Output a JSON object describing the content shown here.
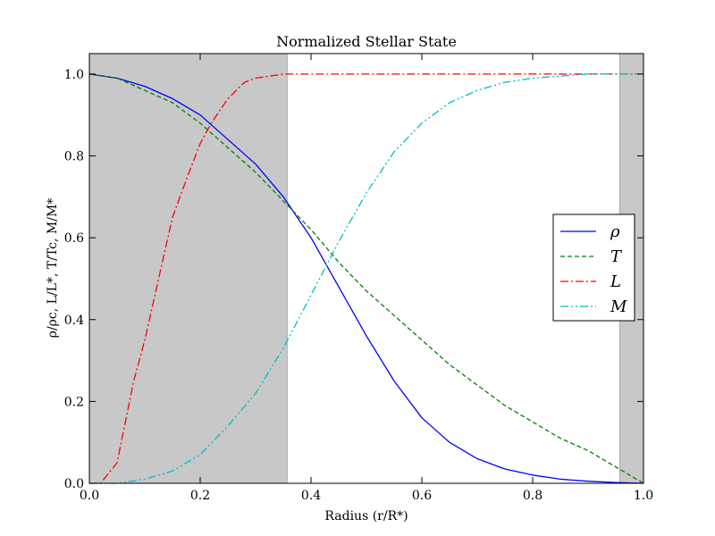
{
  "chart_data": {
    "type": "line",
    "title": "Normalized Stellar State",
    "xlabel": "Radius (r/R*)",
    "ylabel": "ρ/ρc, L/L*, T/Tc, M/M*",
    "xlim": [
      0.0,
      1.0
    ],
    "ylim": [
      0.0,
      1.05
    ],
    "xticks": [
      "0.0",
      "0.2",
      "0.4",
      "0.6",
      "0.8",
      "1.0"
    ],
    "yticks": [
      "0.0",
      "0.2",
      "0.4",
      "0.6",
      "0.8",
      "1.0"
    ],
    "grid": false,
    "legend_position": "center-right",
    "shaded_regions": [
      {
        "x_start": 0.0,
        "x_end": 0.357,
        "color": "#c8c8c8"
      },
      {
        "x_start": 0.957,
        "x_end": 1.0,
        "color": "#c8c8c8"
      }
    ],
    "series": [
      {
        "name": "ρ",
        "color": "#0000ff",
        "style": "solid",
        "x": [
          0.0,
          0.05,
          0.1,
          0.15,
          0.2,
          0.25,
          0.3,
          0.35,
          0.4,
          0.45,
          0.5,
          0.55,
          0.6,
          0.65,
          0.7,
          0.75,
          0.8,
          0.85,
          0.9,
          0.95,
          1.0
        ],
        "y": [
          1.0,
          0.99,
          0.97,
          0.94,
          0.9,
          0.84,
          0.78,
          0.7,
          0.6,
          0.48,
          0.36,
          0.25,
          0.16,
          0.1,
          0.06,
          0.035,
          0.02,
          0.01,
          0.005,
          0.002,
          0.0
        ]
      },
      {
        "name": "T",
        "color": "#008000",
        "style": "dashed",
        "x": [
          0.0,
          0.05,
          0.1,
          0.15,
          0.2,
          0.25,
          0.3,
          0.35,
          0.4,
          0.45,
          0.5,
          0.55,
          0.6,
          0.65,
          0.7,
          0.75,
          0.8,
          0.85,
          0.9,
          0.95,
          1.0
        ],
        "y": [
          1.0,
          0.99,
          0.96,
          0.93,
          0.88,
          0.82,
          0.76,
          0.69,
          0.62,
          0.54,
          0.47,
          0.41,
          0.35,
          0.29,
          0.24,
          0.19,
          0.15,
          0.11,
          0.08,
          0.04,
          0.0
        ]
      },
      {
        "name": "L",
        "color": "#ff0000",
        "style": "dashdot",
        "x": [
          0.0,
          0.02,
          0.05,
          0.08,
          0.1,
          0.12,
          0.15,
          0.18,
          0.2,
          0.22,
          0.25,
          0.28,
          0.3,
          0.35,
          0.4,
          0.5,
          0.6,
          0.7,
          0.8,
          0.9,
          1.0
        ],
        "y": [
          0.0,
          0.0,
          0.05,
          0.25,
          0.35,
          0.47,
          0.65,
          0.76,
          0.83,
          0.88,
          0.94,
          0.98,
          0.99,
          1.0,
          1.0,
          1.0,
          1.0,
          1.0,
          1.0,
          1.0,
          1.0
        ]
      },
      {
        "name": "M",
        "color": "#00bfbf",
        "style": "dashdotdot",
        "x": [
          0.0,
          0.05,
          0.1,
          0.15,
          0.2,
          0.25,
          0.3,
          0.35,
          0.4,
          0.45,
          0.5,
          0.55,
          0.6,
          0.65,
          0.7,
          0.75,
          0.8,
          0.85,
          0.9,
          0.95,
          1.0
        ],
        "y": [
          0.0,
          0.0,
          0.01,
          0.03,
          0.07,
          0.14,
          0.22,
          0.33,
          0.46,
          0.59,
          0.71,
          0.81,
          0.88,
          0.93,
          0.96,
          0.98,
          0.99,
          0.995,
          1.0,
          1.0,
          1.0
        ]
      }
    ]
  }
}
